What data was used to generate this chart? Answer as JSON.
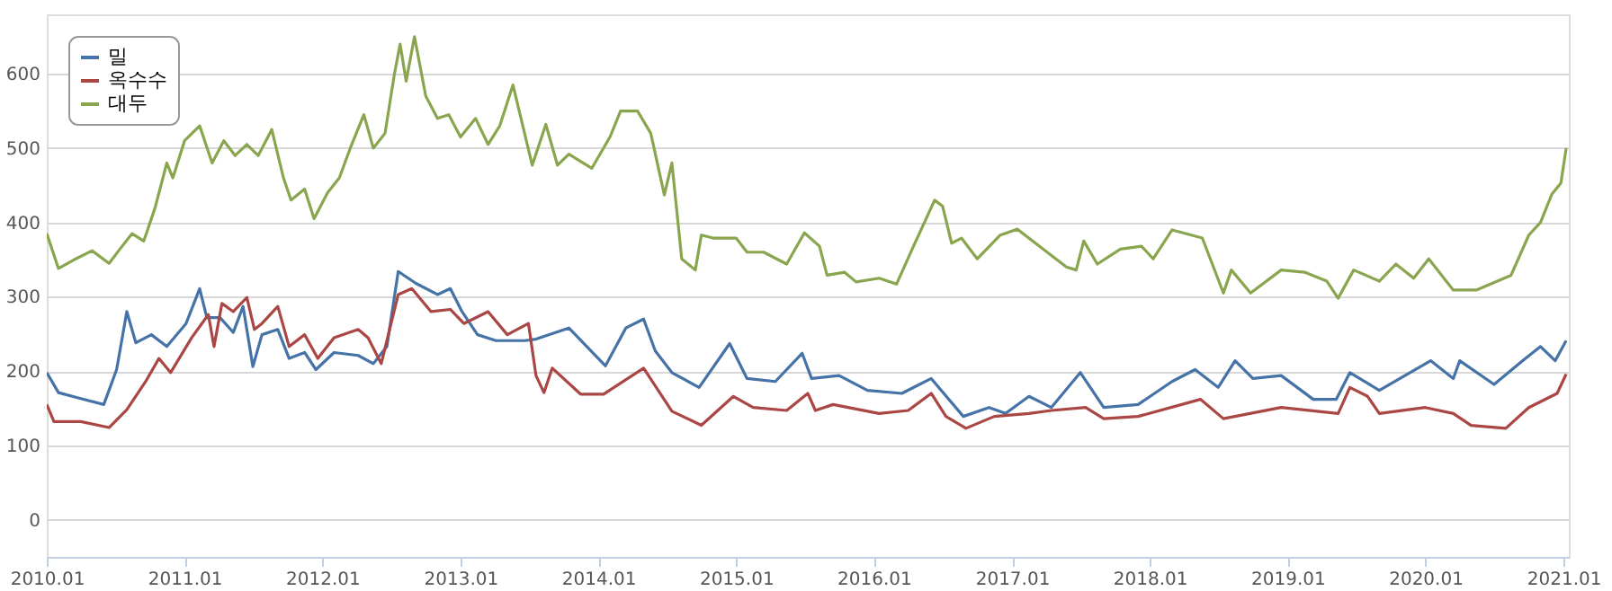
{
  "chart_data": {
    "type": "line",
    "xlim": [
      "2010-01-01",
      "2021-01-15"
    ],
    "xticks": [
      {
        "value": "2010-01-01",
        "label": "2010.01"
      },
      {
        "value": "2011-01-01",
        "label": "2011.01"
      },
      {
        "value": "2012-01-01",
        "label": "2012.01"
      },
      {
        "value": "2013-01-01",
        "label": "2013.01"
      },
      {
        "value": "2014-01-01",
        "label": "2014.01"
      },
      {
        "value": "2015-01-01",
        "label": "2015.01"
      },
      {
        "value": "2016-01-01",
        "label": "2016.01"
      },
      {
        "value": "2017-01-01",
        "label": "2017.01"
      },
      {
        "value": "2018-01-01",
        "label": "2018.01"
      },
      {
        "value": "2019-01-01",
        "label": "2019.01"
      },
      {
        "value": "2020-01-01",
        "label": "2020.01"
      },
      {
        "value": "2021-01-01",
        "label": "2021.01"
      }
    ],
    "ylim": [
      -50,
      680
    ],
    "yticks": [
      0,
      100,
      200,
      300,
      400,
      500,
      600
    ],
    "grid": "y",
    "legend": "top left",
    "marker": "none",
    "line_style": "solid",
    "series": [
      {
        "name": "밀",
        "color": "#4572a7",
        "x": [
          "2010-01-01",
          "2010-02-01",
          "2010-04-01",
          "2010-06-01",
          "2010-07-05",
          "2010-08-01",
          "2010-08-25",
          "2010-10-05",
          "2010-11-15",
          "2011-01-05",
          "2011-02-10",
          "2011-03-01",
          "2011-04-05",
          "2011-05-10",
          "2011-06-05",
          "2011-07-01",
          "2011-07-25",
          "2011-09-05",
          "2011-10-05",
          "2011-11-15",
          "2011-12-15",
          "2012-02-01",
          "2012-04-05",
          "2012-05-15",
          "2012-06-20",
          "2012-07-20",
          "2012-09-05",
          "2012-11-01",
          "2012-12-05",
          "2013-01-05",
          "2013-02-15",
          "2013-04-05",
          "2013-06-20",
          "2013-07-20",
          "2013-10-15",
          "2014-01-20",
          "2014-03-15",
          "2014-05-01",
          "2014-06-01",
          "2014-07-15",
          "2014-09-25",
          "2014-12-15",
          "2015-01-30",
          "2015-04-15",
          "2015-06-25",
          "2015-07-20",
          "2015-10-01",
          "2015-12-15",
          "2016-03-15",
          "2016-06-01",
          "2016-08-25",
          "2016-11-01",
          "2016-12-15",
          "2017-02-15",
          "2017-04-15",
          "2017-07-01",
          "2017-09-01",
          "2017-12-01",
          "2018-03-01",
          "2018-05-01",
          "2018-07-01",
          "2018-08-15",
          "2018-10-01",
          "2018-12-15",
          "2019-03-10",
          "2019-05-10",
          "2019-06-15",
          "2019-09-01",
          "2020-01-15",
          "2020-03-15",
          "2020-04-01",
          "2020-07-01",
          "2020-09-15",
          "2020-11-01",
          "2020-12-10",
          "2021-01-08"
        ],
        "values": [
          198,
          171,
          163,
          155,
          202,
          280,
          238,
          249,
          233,
          264,
          311,
          272,
          272,
          252,
          287,
          206,
          249,
          256,
          217,
          225,
          202,
          225,
          221,
          210,
          233,
          334,
          318,
          303,
          311,
          280,
          249,
          241,
          241,
          243,
          258,
          207,
          258,
          270,
          227,
          198,
          178,
          237,
          190,
          186,
          224,
          190,
          194,
          174,
          170,
          190,
          139,
          151,
          143,
          166,
          151,
          198,
          151,
          155,
          186,
          202,
          178,
          214,
          190,
          194,
          162,
          162,
          198,
          174,
          214,
          190,
          214,
          182,
          214,
          233,
          214,
          241
        ]
      },
      {
        "name": "옥수수",
        "color": "#aa4643",
        "x": [
          "2010-01-01",
          "2010-01-20",
          "2010-04-01",
          "2010-06-15",
          "2010-08-01",
          "2010-09-20",
          "2010-10-25",
          "2010-11-25",
          "2011-01-20",
          "2011-03-05",
          "2011-03-20",
          "2011-04-10",
          "2011-05-10",
          "2011-06-15",
          "2011-07-05",
          "2011-07-25",
          "2011-09-05",
          "2011-10-05",
          "2011-11-15",
          "2011-12-20",
          "2012-02-01",
          "2012-04-05",
          "2012-05-01",
          "2012-06-05",
          "2012-07-20",
          "2012-08-25",
          "2012-10-15",
          "2012-12-05",
          "2013-01-10",
          "2013-03-15",
          "2013-05-05",
          "2013-06-30",
          "2013-07-20",
          "2013-08-10",
          "2013-09-01",
          "2013-11-15",
          "2014-01-15",
          "2014-05-01",
          "2014-07-15",
          "2014-10-01",
          "2014-12-25",
          "2015-02-15",
          "2015-05-15",
          "2015-07-10",
          "2015-07-30",
          "2015-09-15",
          "2016-01-15",
          "2016-04-01",
          "2016-06-01",
          "2016-07-10",
          "2016-09-01",
          "2016-11-15",
          "2017-02-15",
          "2017-04-15",
          "2017-07-15",
          "2017-09-01",
          "2017-12-01",
          "2018-05-15",
          "2018-07-15",
          "2018-12-15",
          "2019-05-15",
          "2019-06-15",
          "2019-08-01",
          "2019-09-01",
          "2020-01-01",
          "2020-03-15",
          "2020-05-01",
          "2020-08-01",
          "2020-10-01",
          "2020-12-15",
          "2021-01-08"
        ],
        "values": [
          155,
          132,
          132,
          124,
          148,
          186,
          217,
          198,
          245,
          276,
          233,
          291,
          280,
          299,
          256,
          264,
          287,
          233,
          249,
          217,
          245,
          256,
          245,
          210,
          303,
          311,
          280,
          283,
          264,
          280,
          249,
          264,
          194,
          171,
          204,
          169,
          169,
          204,
          146,
          127,
          166,
          151,
          147,
          170,
          147,
          155,
          143,
          147,
          170,
          139,
          123,
          139,
          143,
          147,
          151,
          136,
          139,
          162,
          136,
          151,
          143,
          178,
          166,
          143,
          151,
          143,
          127,
          123,
          151,
          170,
          196
        ]
      },
      {
        "name": "대두",
        "color": "#89a54e",
        "x": [
          "2010-01-01",
          "2010-02-01",
          "2010-03-15",
          "2010-05-01",
          "2010-06-15",
          "2010-07-15",
          "2010-08-15",
          "2010-09-15",
          "2010-10-15",
          "2010-11-15",
          "2010-12-01",
          "2011-01-01",
          "2011-02-10",
          "2011-03-15",
          "2011-04-15",
          "2011-05-15",
          "2011-06-15",
          "2011-07-15",
          "2011-08-20",
          "2011-09-20",
          "2011-10-10",
          "2011-11-15",
          "2011-12-10",
          "2012-01-15",
          "2012-02-15",
          "2012-03-15",
          "2012-04-20",
          "2012-05-15",
          "2012-06-15",
          "2012-07-10",
          "2012-07-25",
          "2012-08-10",
          "2012-09-01",
          "2012-10-01",
          "2012-11-01",
          "2012-12-01",
          "2013-01-01",
          "2013-02-10",
          "2013-03-15",
          "2013-04-15",
          "2013-05-20",
          "2013-07-10",
          "2013-08-15",
          "2013-09-15",
          "2013-10-15",
          "2013-12-15",
          "2014-02-01",
          "2014-03-01",
          "2014-04-15",
          "2014-05-20",
          "2014-06-25",
          "2014-07-15",
          "2014-08-10",
          "2014-09-15",
          "2014-10-01",
          "2014-11-01",
          "2015-01-01",
          "2015-01-30",
          "2015-03-15",
          "2015-05-15",
          "2015-07-01",
          "2015-08-10",
          "2015-08-30",
          "2015-10-15",
          "2015-11-15",
          "2016-01-15",
          "2016-03-01",
          "2016-04-15",
          "2016-06-10",
          "2016-07-01",
          "2016-07-25",
          "2016-08-20",
          "2016-10-01",
          "2016-12-01",
          "2017-01-15",
          "2017-03-15",
          "2017-05-25",
          "2017-06-20",
          "2017-07-10",
          "2017-08-15",
          "2017-10-15",
          "2017-12-10",
          "2018-01-10",
          "2018-03-01",
          "2018-05-20",
          "2018-07-15",
          "2018-08-05",
          "2018-09-25",
          "2018-12-15",
          "2019-02-15",
          "2019-04-15",
          "2019-05-15",
          "2019-06-25",
          "2019-09-01",
          "2019-10-15",
          "2019-12-01",
          "2020-01-10",
          "2020-03-15",
          "2020-05-15",
          "2020-08-15",
          "2020-10-01",
          "2020-11-01",
          "2020-12-01",
          "2020-12-25",
          "2021-01-08"
        ],
        "values": [
          385,
          338,
          350,
          362,
          345,
          365,
          385,
          375,
          420,
          480,
          460,
          510,
          530,
          480,
          510,
          490,
          505,
          490,
          525,
          460,
          430,
          445,
          405,
          440,
          460,
          500,
          545,
          500,
          520,
          600,
          640,
          590,
          650,
          570,
          540,
          545,
          515,
          540,
          505,
          530,
          585,
          477,
          532,
          477,
          492,
          473,
          515,
          550,
          550,
          520,
          437,
          480,
          351,
          336,
          383,
          379,
          379,
          360,
          360,
          344,
          386,
          368,
          329,
          333,
          320,
          325,
          317,
          368,
          430,
          422,
          372,
          379,
          351,
          383,
          391,
          368,
          340,
          336,
          375,
          344,
          364,
          368,
          351,
          390,
          379,
          305,
          336,
          305,
          336,
          333,
          321,
          298,
          336,
          321,
          344,
          325,
          351,
          309,
          309,
          329,
          383,
          400,
          438,
          453,
          500
        ]
      }
    ]
  }
}
